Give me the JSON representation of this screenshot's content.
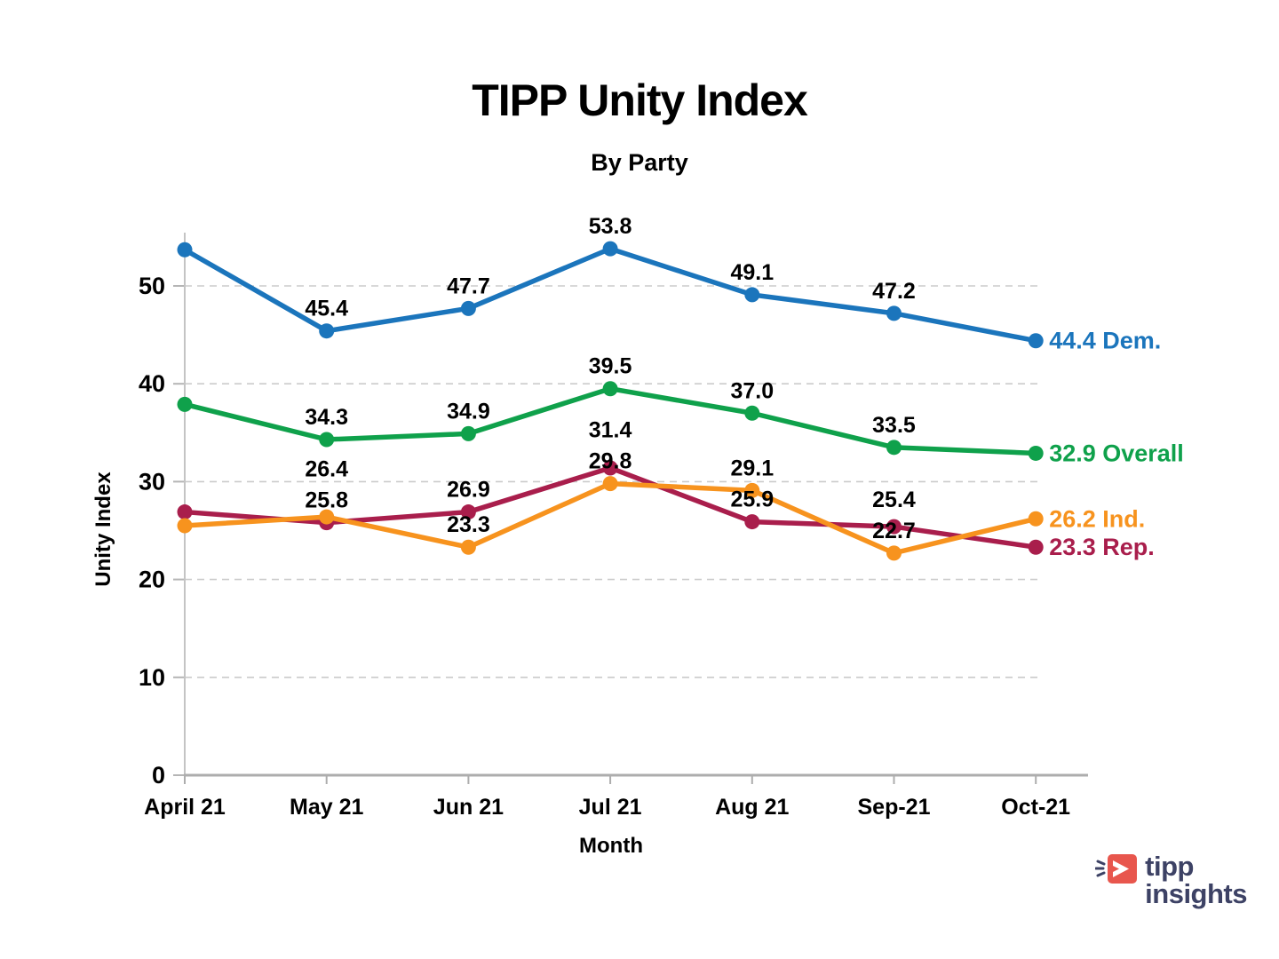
{
  "page": {
    "title": "TIPP Unity Index",
    "subtitle": "By Party"
  },
  "branding": {
    "word1": "tipp",
    "word2": "insights",
    "icon": "tipp-arrow-icon",
    "icon_color": "#E8564D",
    "text_color": "#3D4265"
  },
  "chart_data": {
    "type": "line",
    "title": "TIPP Unity Index",
    "subtitle": "By Party",
    "xlabel": "Month",
    "ylabel": "Unity Index",
    "x_categories": [
      "April 21",
      "May 21",
      "Jun 21",
      "Jul 21",
      "Aug 21",
      "Sep-21",
      "Oct-21"
    ],
    "ylim": [
      0,
      55
    ],
    "yticks": [
      0,
      10,
      20,
      30,
      40,
      50
    ],
    "grid": "horizontal-dashed",
    "legend_position": "end-of-line",
    "colors": {
      "grid": "#CBCBCB",
      "axis": "#ADADAD",
      "tick": "#B5B5B5"
    },
    "series": [
      {
        "name": "Dem.",
        "color": "#1B75BC",
        "values": [
          53.7,
          45.4,
          47.7,
          53.8,
          49.1,
          47.2,
          44.4
        ],
        "point_labels": [
          null,
          "45.4",
          "47.7",
          "53.8",
          "49.1",
          "47.2",
          null
        ],
        "end_label": "44.4 Dem."
      },
      {
        "name": "Overall",
        "color": "#0FA14B",
        "values": [
          37.9,
          34.3,
          34.9,
          39.5,
          37.0,
          33.5,
          32.9
        ],
        "point_labels": [
          null,
          "34.3",
          "34.9",
          "39.5",
          "37.0",
          "33.5",
          null
        ],
        "end_label": "32.9 Overall"
      },
      {
        "name": "Rep.",
        "color": "#A91E4C",
        "values": [
          26.9,
          25.8,
          26.9,
          31.4,
          25.9,
          25.4,
          23.3
        ],
        "point_labels": [
          null,
          "25.8",
          "26.9",
          "31.4",
          "25.9",
          "25.4",
          null
        ],
        "end_label": "23.3 Rep."
      },
      {
        "name": "Ind.",
        "color": "#F7931E",
        "values": [
          25.5,
          26.4,
          23.3,
          29.8,
          29.1,
          22.7,
          26.2
        ],
        "point_labels": [
          null,
          "26.4",
          "23.3",
          "29.8",
          "29.1",
          "22.7",
          null
        ],
        "end_label": "26.2 Ind."
      }
    ]
  }
}
